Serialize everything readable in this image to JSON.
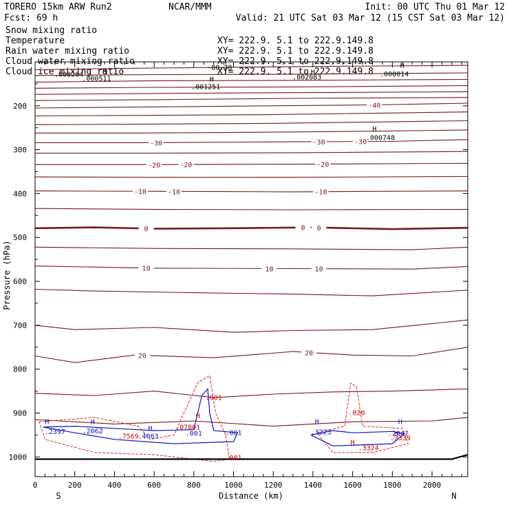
{
  "header": {
    "model": "TORERO  15km ARW   Run2",
    "org": "NCAR/MMM",
    "init": "Init: 00 UTC Thu 01 Mar 12",
    "fcst": "Fcst:   69 h",
    "valid": "Valid: 21 UTC Sat 03 Mar 12 (15 CST Sat 03 Mar 12)"
  },
  "legend": [
    {
      "name": "Snow mixing ratio",
      "xy": "",
      "color": "#000000"
    },
    {
      "name": "Temperature",
      "xy": "XY= 222.9.  5.1 to 222.9.149.8",
      "color": "#cc0000"
    },
    {
      "name": "Rain water mixing ratio",
      "xy": "XY= 222.9.  5.1 to 222.9.149.8",
      "color": "#cc0000"
    },
    {
      "name": "Cloud water mixing ratio",
      "xy": "XY= 222.9.  5.1 to 222.9.149.8",
      "color": "#0000cc"
    },
    {
      "name": "Cloud ice mixing ratio",
      "xy": "XY= 222.9.  5.1 to 222.9.149.8",
      "color": "#000000"
    }
  ],
  "chart_data": {
    "type": "contour_cross_section",
    "xlabel": "Distance (km)",
    "ylabel": "Pressure (hPa)",
    "xlim": [
      0,
      2180
    ],
    "ylim": [
      1045,
      100
    ],
    "xticks": [
      0,
      200,
      400,
      600,
      800,
      1000,
      1200,
      1400,
      1600,
      1800,
      2000
    ],
    "yticks": [
      200,
      300,
      400,
      500,
      600,
      700,
      800,
      900,
      1000
    ],
    "left_end": "S",
    "right_end": "N",
    "colors": {
      "temperature": "#7a1418",
      "rain": "#e02020",
      "cloud_water": "#1010c0",
      "ice": "#000000",
      "ground": "#000000"
    },
    "temperature_lines": [
      {
        "label": "-80.78",
        "pts": [
          [
            0,
            118
          ],
          [
            400,
            115
          ],
          [
            1000,
            112
          ],
          [
            1500,
            110
          ],
          [
            2180,
            108
          ]
        ],
        "labels": []
      },
      {
        "label": "",
        "pts": [
          [
            0,
            131
          ],
          [
            600,
            129
          ],
          [
            1300,
            128
          ],
          [
            2180,
            125
          ]
        ],
        "labels": []
      },
      {
        "label": "",
        "pts": [
          [
            0,
            146
          ],
          [
            600,
            143
          ],
          [
            1300,
            142
          ],
          [
            2180,
            140
          ]
        ],
        "labels": []
      },
      {
        "label": "",
        "pts": [
          [
            0,
            160
          ],
          [
            600,
            158
          ],
          [
            1300,
            157
          ],
          [
            2180,
            154
          ]
        ],
        "labels": []
      },
      {
        "label": "",
        "pts": [
          [
            0,
            174
          ],
          [
            600,
            172
          ],
          [
            1300,
            170
          ],
          [
            2180,
            168
          ]
        ],
        "labels": []
      },
      {
        "label": "",
        "pts": [
          [
            0,
            188
          ],
          [
            600,
            186
          ],
          [
            1300,
            183
          ],
          [
            2180,
            181
          ]
        ],
        "labels": []
      },
      {
        "label": "-40",
        "pts": [
          [
            0,
            205
          ],
          [
            500,
            203
          ],
          [
            1200,
            200
          ],
          [
            1700,
            198
          ],
          [
            2180,
            194
          ]
        ],
        "labels": [
          [
            1710,
            "-40"
          ]
        ]
      },
      {
        "label": "",
        "pts": [
          [
            0,
            223
          ],
          [
            500,
            222
          ],
          [
            1200,
            220
          ],
          [
            1700,
            217
          ],
          [
            2180,
            214
          ]
        ],
        "labels": []
      },
      {
        "label": "",
        "pts": [
          [
            0,
            243
          ],
          [
            500,
            242
          ],
          [
            1200,
            240
          ],
          [
            1700,
            237
          ],
          [
            2180,
            234
          ]
        ],
        "labels": []
      },
      {
        "label": "",
        "pts": [
          [
            0,
            262
          ],
          [
            500,
            262
          ],
          [
            1200,
            260
          ],
          [
            1700,
            258
          ],
          [
            2180,
            255
          ]
        ],
        "labels": []
      },
      {
        "label": "-30",
        "pts": [
          [
            0,
            284
          ],
          [
            600,
            284
          ],
          [
            1300,
            282
          ],
          [
            1800,
            281
          ],
          [
            2180,
            277
          ]
        ],
        "labels": [
          [
            610,
            "-30"
          ],
          [
            1430,
            "-30"
          ],
          [
            1640,
            "-30"
          ]
        ]
      },
      {
        "label": "",
        "pts": [
          [
            0,
            308
          ],
          [
            600,
            308
          ],
          [
            1300,
            307
          ],
          [
            2180,
            304
          ]
        ],
        "labels": []
      },
      {
        "label": "-20",
        "pts": [
          [
            0,
            334
          ],
          [
            600,
            334
          ],
          [
            1300,
            333
          ],
          [
            2180,
            331
          ]
        ],
        "labels": [
          [
            600,
            "-20"
          ],
          [
            760,
            "-20"
          ],
          [
            1450,
            "-20"
          ]
        ]
      },
      {
        "label": "",
        "pts": [
          [
            0,
            362
          ],
          [
            600,
            363
          ],
          [
            1300,
            363
          ],
          [
            2180,
            361
          ]
        ],
        "labels": []
      },
      {
        "label": "-10",
        "pts": [
          [
            0,
            394
          ],
          [
            600,
            395
          ],
          [
            1300,
            396
          ],
          [
            2180,
            394
          ]
        ],
        "labels": [
          [
            530,
            "-10"
          ],
          [
            700,
            "-10"
          ],
          [
            1440,
            "-10"
          ]
        ]
      },
      {
        "label": "",
        "pts": [
          [
            0,
            434
          ],
          [
            600,
            436
          ],
          [
            1300,
            437
          ],
          [
            2180,
            436
          ]
        ],
        "labels": []
      },
      {
        "label": "0",
        "pts": [
          [
            0,
            479
          ],
          [
            300,
            477
          ],
          [
            600,
            480
          ],
          [
            1000,
            479
          ],
          [
            1400,
            477
          ],
          [
            1800,
            481
          ],
          [
            2180,
            478
          ]
        ],
        "labels": [
          [
            560,
            "0"
          ],
          [
            1350,
            "0"
          ],
          [
            1430,
            "0"
          ]
        ],
        "bold": true
      },
      {
        "label": "",
        "pts": [
          [
            0,
            522
          ],
          [
            600,
            525
          ],
          [
            1300,
            526
          ],
          [
            1900,
            528
          ],
          [
            2180,
            522
          ]
        ],
        "labels": []
      },
      {
        "label": "10",
        "pts": [
          [
            0,
            565
          ],
          [
            600,
            570
          ],
          [
            1300,
            571
          ],
          [
            1900,
            572
          ],
          [
            2180,
            566
          ]
        ],
        "labels": [
          [
            560,
            "10"
          ],
          [
            1180,
            "10"
          ],
          [
            1430,
            "10"
          ]
        ]
      },
      {
        "label": "",
        "pts": [
          [
            0,
            618
          ],
          [
            300,
            622
          ],
          [
            800,
            626
          ],
          [
            1300,
            629
          ],
          [
            1700,
            633
          ],
          [
            2180,
            620
          ]
        ],
        "labels": []
      },
      {
        "label": "",
        "pts": [
          [
            0,
            700
          ],
          [
            200,
            710
          ],
          [
            600,
            705
          ],
          [
            1000,
            716
          ],
          [
            1300,
            712
          ],
          [
            1700,
            710
          ],
          [
            2180,
            688
          ]
        ],
        "labels": []
      },
      {
        "label": "20",
        "pts": [
          [
            0,
            770
          ],
          [
            200,
            785
          ],
          [
            500,
            768
          ],
          [
            900,
            774
          ],
          [
            1300,
            760
          ],
          [
            1600,
            768
          ],
          [
            1900,
            770
          ],
          [
            2180,
            750
          ]
        ],
        "labels": [
          [
            540,
            "20"
          ],
          [
            1380,
            "20"
          ]
        ]
      },
      {
        "label": "",
        "pts": [
          [
            0,
            855
          ],
          [
            300,
            860
          ],
          [
            600,
            850
          ],
          [
            900,
            865
          ],
          [
            1200,
            857
          ],
          [
            1500,
            852
          ],
          [
            1800,
            850
          ],
          [
            2180,
            845
          ]
        ],
        "labels": []
      },
      {
        "label": "",
        "pts": [
          [
            0,
            915
          ],
          [
            400,
            925
          ],
          [
            800,
            918
          ],
          [
            1200,
            930
          ],
          [
            1600,
            920
          ],
          [
            2000,
            918
          ],
          [
            2180,
            910
          ]
        ],
        "labels": []
      }
    ],
    "ground_line": [
      [
        0,
        1005
      ],
      [
        1500,
        1005
      ],
      [
        2100,
        1005
      ],
      [
        2180,
        995
      ]
    ],
    "cloud_water_contours": [
      [
        [
          40,
          932
        ],
        [
          200,
          930
        ],
        [
          400,
          935
        ],
        [
          600,
          940
        ],
        [
          800,
          938
        ],
        [
          840,
          860
        ],
        [
          870,
          845
        ],
        [
          880,
          900
        ],
        [
          900,
          940
        ],
        [
          1020,
          945
        ],
        [
          1000,
          965
        ],
        [
          700,
          970
        ],
        [
          400,
          960
        ],
        [
          200,
          945
        ],
        [
          40,
          932
        ]
      ],
      [
        [
          1390,
          950
        ],
        [
          1500,
          940
        ],
        [
          1600,
          945
        ],
        [
          1800,
          942
        ],
        [
          1860,
          947
        ],
        [
          1800,
          970
        ],
        [
          1500,
          975
        ],
        [
          1390,
          950
        ]
      ]
    ],
    "rain_contours": [
      [
        [
          20,
          920
        ],
        [
          300,
          910
        ],
        [
          520,
          930
        ],
        [
          580,
          960
        ],
        [
          700,
          950
        ],
        [
          820,
          830
        ],
        [
          880,
          815
        ],
        [
          910,
          900
        ],
        [
          960,
          950
        ],
        [
          980,
          1005
        ],
        [
          900,
          1010
        ],
        [
          600,
          995
        ],
        [
          300,
          990
        ],
        [
          50,
          960
        ],
        [
          20,
          920
        ]
      ],
      [
        [
          1420,
          945
        ],
        [
          1560,
          930
        ],
        [
          1590,
          832
        ],
        [
          1620,
          840
        ],
        [
          1650,
          930
        ],
        [
          1850,
          935
        ],
        [
          1880,
          970
        ],
        [
          1700,
          990
        ],
        [
          1500,
          990
        ],
        [
          1420,
          945
        ]
      ]
    ],
    "value_labels": [
      {
        "x": 170,
        "p": 134,
        "text": ".000264",
        "color": "#000000"
      },
      {
        "x": 310,
        "p": 143,
        "text": ".000511",
        "color": "#000000"
      },
      {
        "x": 860,
        "p": 162,
        "text": ".001251",
        "color": "#000000"
      },
      {
        "x": 1370,
        "p": 140,
        "text": ".002083",
        "color": "#000000"
      },
      {
        "x": 1740,
        "p": 278,
        "text": ".000748",
        "color": "#000000"
      },
      {
        "x": 1810,
        "p": 133,
        "text": ".000014",
        "color": "#000000"
      },
      {
        "x": 100,
        "p": 948,
        "text": ".2397",
        "color": "#1010c0"
      },
      {
        "x": 290,
        "p": 946,
        "text": ".2062",
        "color": "#1010c0"
      },
      {
        "x": 470,
        "p": 958,
        "text": ".7569",
        "color": "#cc0000"
      },
      {
        "x": 570,
        "p": 958,
        "text": ".4063",
        "color": "#1010c0"
      },
      {
        "x": 770,
        "p": 938,
        "text": ".07801",
        "color": "#cc0000"
      },
      {
        "x": 800,
        "p": 952,
        "text": ".001",
        "color": "#1010c0"
      },
      {
        "x": 1000,
        "p": 950,
        "text": ".001",
        "color": "#1010c0"
      },
      {
        "x": 900,
        "p": 870,
        "text": ".001",
        "color": "#cc0000"
      },
      {
        "x": 1000,
        "p": 1007,
        "text": ".001",
        "color": "#cc0000"
      },
      {
        "x": 1440,
        "p": 949,
        "text": ".3223",
        "color": "#1010c0"
      },
      {
        "x": 1620,
        "p": 905,
        "text": ".020",
        "color": "#cc0000"
      },
      {
        "x": 1680,
        "p": 985,
        "text": ".3324",
        "color": "#cc0000"
      },
      {
        "x": 1830,
        "p": 952,
        "text": ".2047",
        "color": "#1010c0"
      },
      {
        "x": 1840,
        "p": 962,
        "text": ".3339",
        "color": "#cc0000"
      }
    ],
    "highs": [
      {
        "x": 350,
        "p": 127,
        "color": "#000000"
      },
      {
        "x": 890,
        "p": 145,
        "color": "#000000"
      },
      {
        "x": 1400,
        "p": 128,
        "color": "#000000"
      },
      {
        "x": 1850,
        "p": 113,
        "color": "#000000"
      },
      {
        "x": 1710,
        "p": 258,
        "color": "#000000"
      },
      {
        "x": 60,
        "p": 925,
        "color": "#1010c0"
      },
      {
        "x": 290,
        "p": 925,
        "color": "#1010c0"
      },
      {
        "x": 580,
        "p": 940,
        "color": "#1010c0"
      },
      {
        "x": 820,
        "p": 912,
        "color": "#cc0000"
      },
      {
        "x": 1420,
        "p": 925,
        "color": "#1010c0"
      },
      {
        "x": 1600,
        "p": 972,
        "color": "#cc0000"
      },
      {
        "x": 1840,
        "p": 925,
        "color": "#1010c0"
      },
      {
        "x": 1820,
        "p": 952,
        "color": "#cc0000"
      }
    ]
  }
}
